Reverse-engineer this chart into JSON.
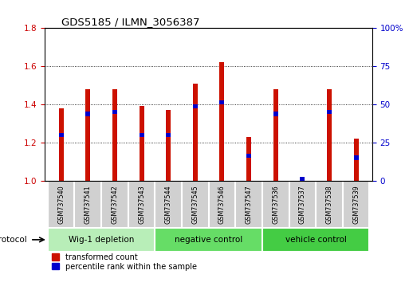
{
  "title": "GDS5185 / ILMN_3056387",
  "samples": [
    "GSM737540",
    "GSM737541",
    "GSM737542",
    "GSM737543",
    "GSM737544",
    "GSM737545",
    "GSM737546",
    "GSM737547",
    "GSM737536",
    "GSM737537",
    "GSM737538",
    "GSM737539"
  ],
  "red_values": [
    1.38,
    1.48,
    1.48,
    1.39,
    1.37,
    1.51,
    1.62,
    1.23,
    1.48,
    1.0,
    1.48,
    1.22
  ],
  "blue_values": [
    1.24,
    1.35,
    1.36,
    1.24,
    1.24,
    1.39,
    1.41,
    1.13,
    1.35,
    1.01,
    1.36,
    1.12
  ],
  "ylim_left": [
    1.0,
    1.8
  ],
  "ylim_right": [
    0,
    100
  ],
  "yticks_left": [
    1.0,
    1.2,
    1.4,
    1.6,
    1.8
  ],
  "yticks_right": [
    0,
    25,
    50,
    75,
    100
  ],
  "groups": [
    {
      "label": "Wig-1 depletion",
      "start": 0,
      "end": 4,
      "color": "#b8eeb8"
    },
    {
      "label": "negative control",
      "start": 4,
      "end": 8,
      "color": "#66dd66"
    },
    {
      "label": "vehicle control",
      "start": 8,
      "end": 12,
      "color": "#44cc44"
    }
  ],
  "protocol_label": "protocol",
  "red_color": "#cc1100",
  "blue_color": "#0000cc",
  "bar_width": 0.18,
  "blue_bar_height": 0.022,
  "tick_label_color_left": "#cc0000",
  "tick_label_color_right": "#0000cc",
  "bg_color": "#ffffff",
  "cell_color": "#d0d0d0",
  "cell_edge_color": "#ffffff"
}
